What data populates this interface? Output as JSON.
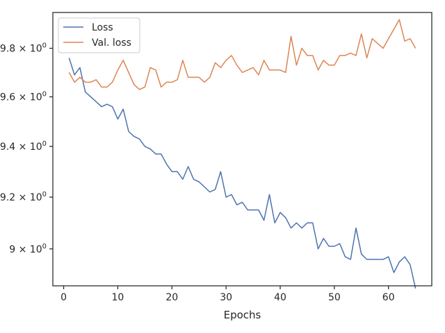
{
  "chart_data": {
    "type": "line",
    "title": "",
    "xlabel": "Epochs",
    "ylabel": "",
    "yscale": "log",
    "xlim": [
      -2,
      68
    ],
    "ylim": [
      8.86,
      9.95
    ],
    "xticks": [
      0,
      10,
      20,
      30,
      40,
      50,
      60
    ],
    "yticks": [
      {
        "value": 9.0,
        "base": "9 × 10",
        "exp": "0"
      },
      {
        "value": 9.2,
        "base": "9.2 × 10",
        "exp": "0"
      },
      {
        "value": 9.4,
        "base": "9.4 × 10",
        "exp": "0"
      },
      {
        "value": 9.6,
        "base": "9.6 × 10",
        "exp": "0"
      },
      {
        "value": 9.8,
        "base": "9.8 × 10",
        "exp": "0"
      }
    ],
    "grid": false,
    "legend_position": "top-left",
    "series": [
      {
        "name": "Loss",
        "color": "#4c72b0",
        "x": [
          1,
          2,
          3,
          4,
          5,
          6,
          7,
          8,
          9,
          10,
          11,
          12,
          13,
          14,
          15,
          16,
          17,
          18,
          19,
          20,
          21,
          22,
          23,
          24,
          25,
          26,
          27,
          28,
          29,
          30,
          31,
          32,
          33,
          34,
          35,
          36,
          37,
          38,
          39,
          40,
          41,
          42,
          43,
          44,
          45,
          46,
          47,
          48,
          49,
          50,
          51,
          52,
          53,
          54,
          55,
          56,
          57,
          58,
          59,
          60,
          61,
          62,
          63,
          64,
          65
        ],
        "values": [
          9.76,
          9.69,
          9.72,
          9.62,
          9.6,
          9.58,
          9.56,
          9.57,
          9.56,
          9.51,
          9.55,
          9.46,
          9.44,
          9.43,
          9.4,
          9.39,
          9.37,
          9.37,
          9.33,
          9.3,
          9.3,
          9.27,
          9.32,
          9.27,
          9.26,
          9.24,
          9.22,
          9.23,
          9.3,
          9.2,
          9.21,
          9.17,
          9.18,
          9.15,
          9.15,
          9.15,
          9.11,
          9.21,
          9.1,
          9.14,
          9.12,
          9.08,
          9.1,
          9.08,
          9.1,
          9.1,
          9.0,
          9.04,
          9.01,
          9.01,
          9.02,
          8.97,
          8.96,
          9.08,
          8.98,
          8.96,
          8.96,
          8.96,
          8.96,
          8.97,
          8.91,
          8.95,
          8.97,
          8.94,
          8.85
        ]
      },
      {
        "name": "Val. loss",
        "color": "#dd8452",
        "x": [
          1,
          2,
          3,
          4,
          5,
          6,
          7,
          8,
          9,
          10,
          11,
          12,
          13,
          14,
          15,
          16,
          17,
          18,
          19,
          20,
          21,
          22,
          23,
          24,
          25,
          26,
          27,
          28,
          29,
          30,
          31,
          32,
          33,
          34,
          35,
          36,
          37,
          38,
          39,
          40,
          41,
          42,
          43,
          44,
          45,
          46,
          47,
          48,
          49,
          50,
          51,
          52,
          53,
          54,
          55,
          56,
          57,
          58,
          59,
          60,
          61,
          62,
          63,
          64,
          65
        ],
        "values": [
          9.7,
          9.66,
          9.68,
          9.66,
          9.66,
          9.67,
          9.64,
          9.64,
          9.66,
          9.71,
          9.75,
          9.7,
          9.65,
          9.63,
          9.64,
          9.72,
          9.71,
          9.64,
          9.66,
          9.66,
          9.67,
          9.75,
          9.68,
          9.68,
          9.68,
          9.66,
          9.68,
          9.74,
          9.72,
          9.75,
          9.77,
          9.73,
          9.7,
          9.71,
          9.72,
          9.69,
          9.75,
          9.71,
          9.71,
          9.71,
          9.7,
          9.85,
          9.73,
          9.8,
          9.77,
          9.77,
          9.71,
          9.75,
          9.73,
          9.73,
          9.77,
          9.77,
          9.78,
          9.77,
          9.86,
          9.76,
          9.84,
          9.82,
          9.8,
          9.84,
          9.88,
          9.92,
          9.83,
          9.84,
          9.8
        ]
      }
    ]
  }
}
